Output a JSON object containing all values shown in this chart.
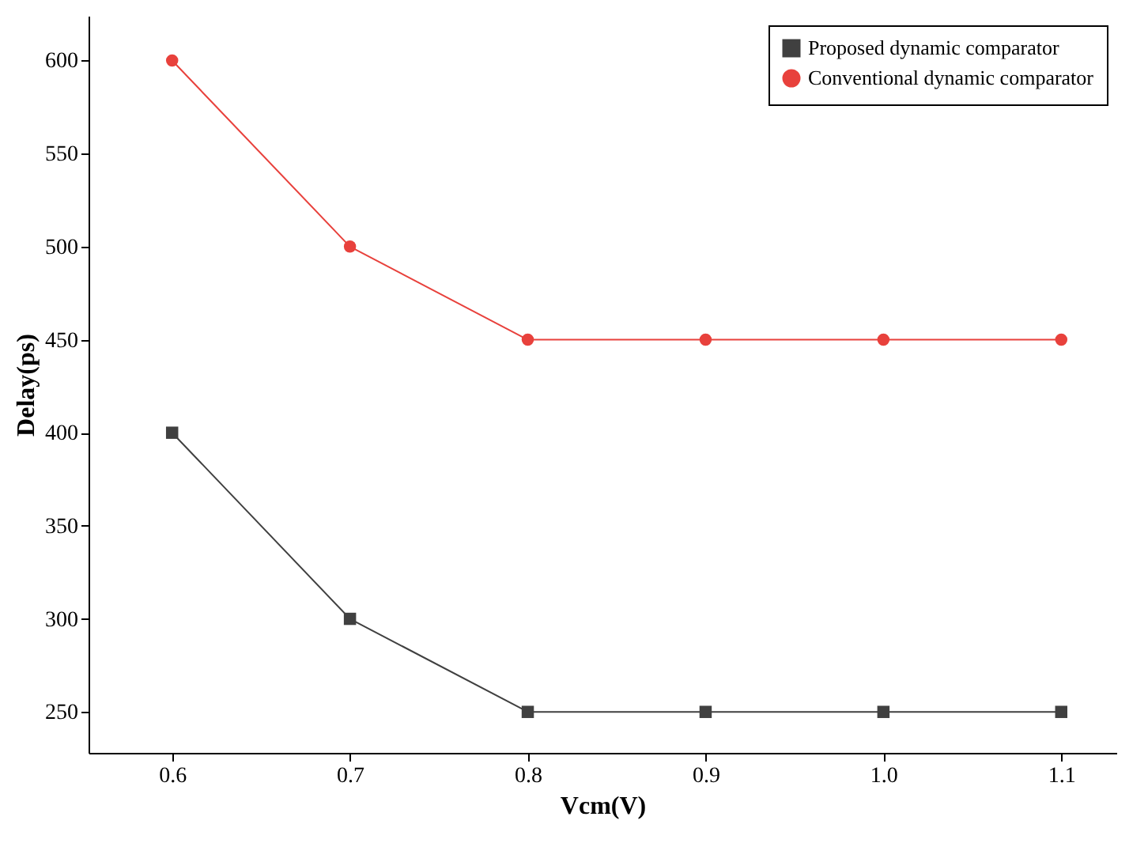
{
  "chart_data": {
    "type": "line",
    "xlabel": "Vcm(V)",
    "ylabel": "Delay(ps)",
    "x": [
      0.6,
      0.7,
      0.8,
      0.9,
      1.0,
      1.1
    ],
    "series": [
      {
        "name": "Proposed dynamic comparator",
        "color": "#404040",
        "marker": "square",
        "values": [
          400,
          300,
          250,
          250,
          250,
          250
        ]
      },
      {
        "name": "Conventional dynamic comparator",
        "color": "#e8413c",
        "marker": "circle",
        "values": [
          600,
          500,
          450,
          450,
          450,
          450
        ]
      }
    ],
    "xlim": [
      0.553,
      1.131
    ],
    "ylim": [
      228,
      624
    ],
    "xticks": [
      0.6,
      0.7,
      0.8,
      0.9,
      {
        "value": 1.0,
        "label": "1.0"
      },
      1.1
    ],
    "yticks": [
      250,
      300,
      350,
      400,
      450,
      500,
      550,
      600
    ],
    "grid": false,
    "legend": "top right"
  }
}
